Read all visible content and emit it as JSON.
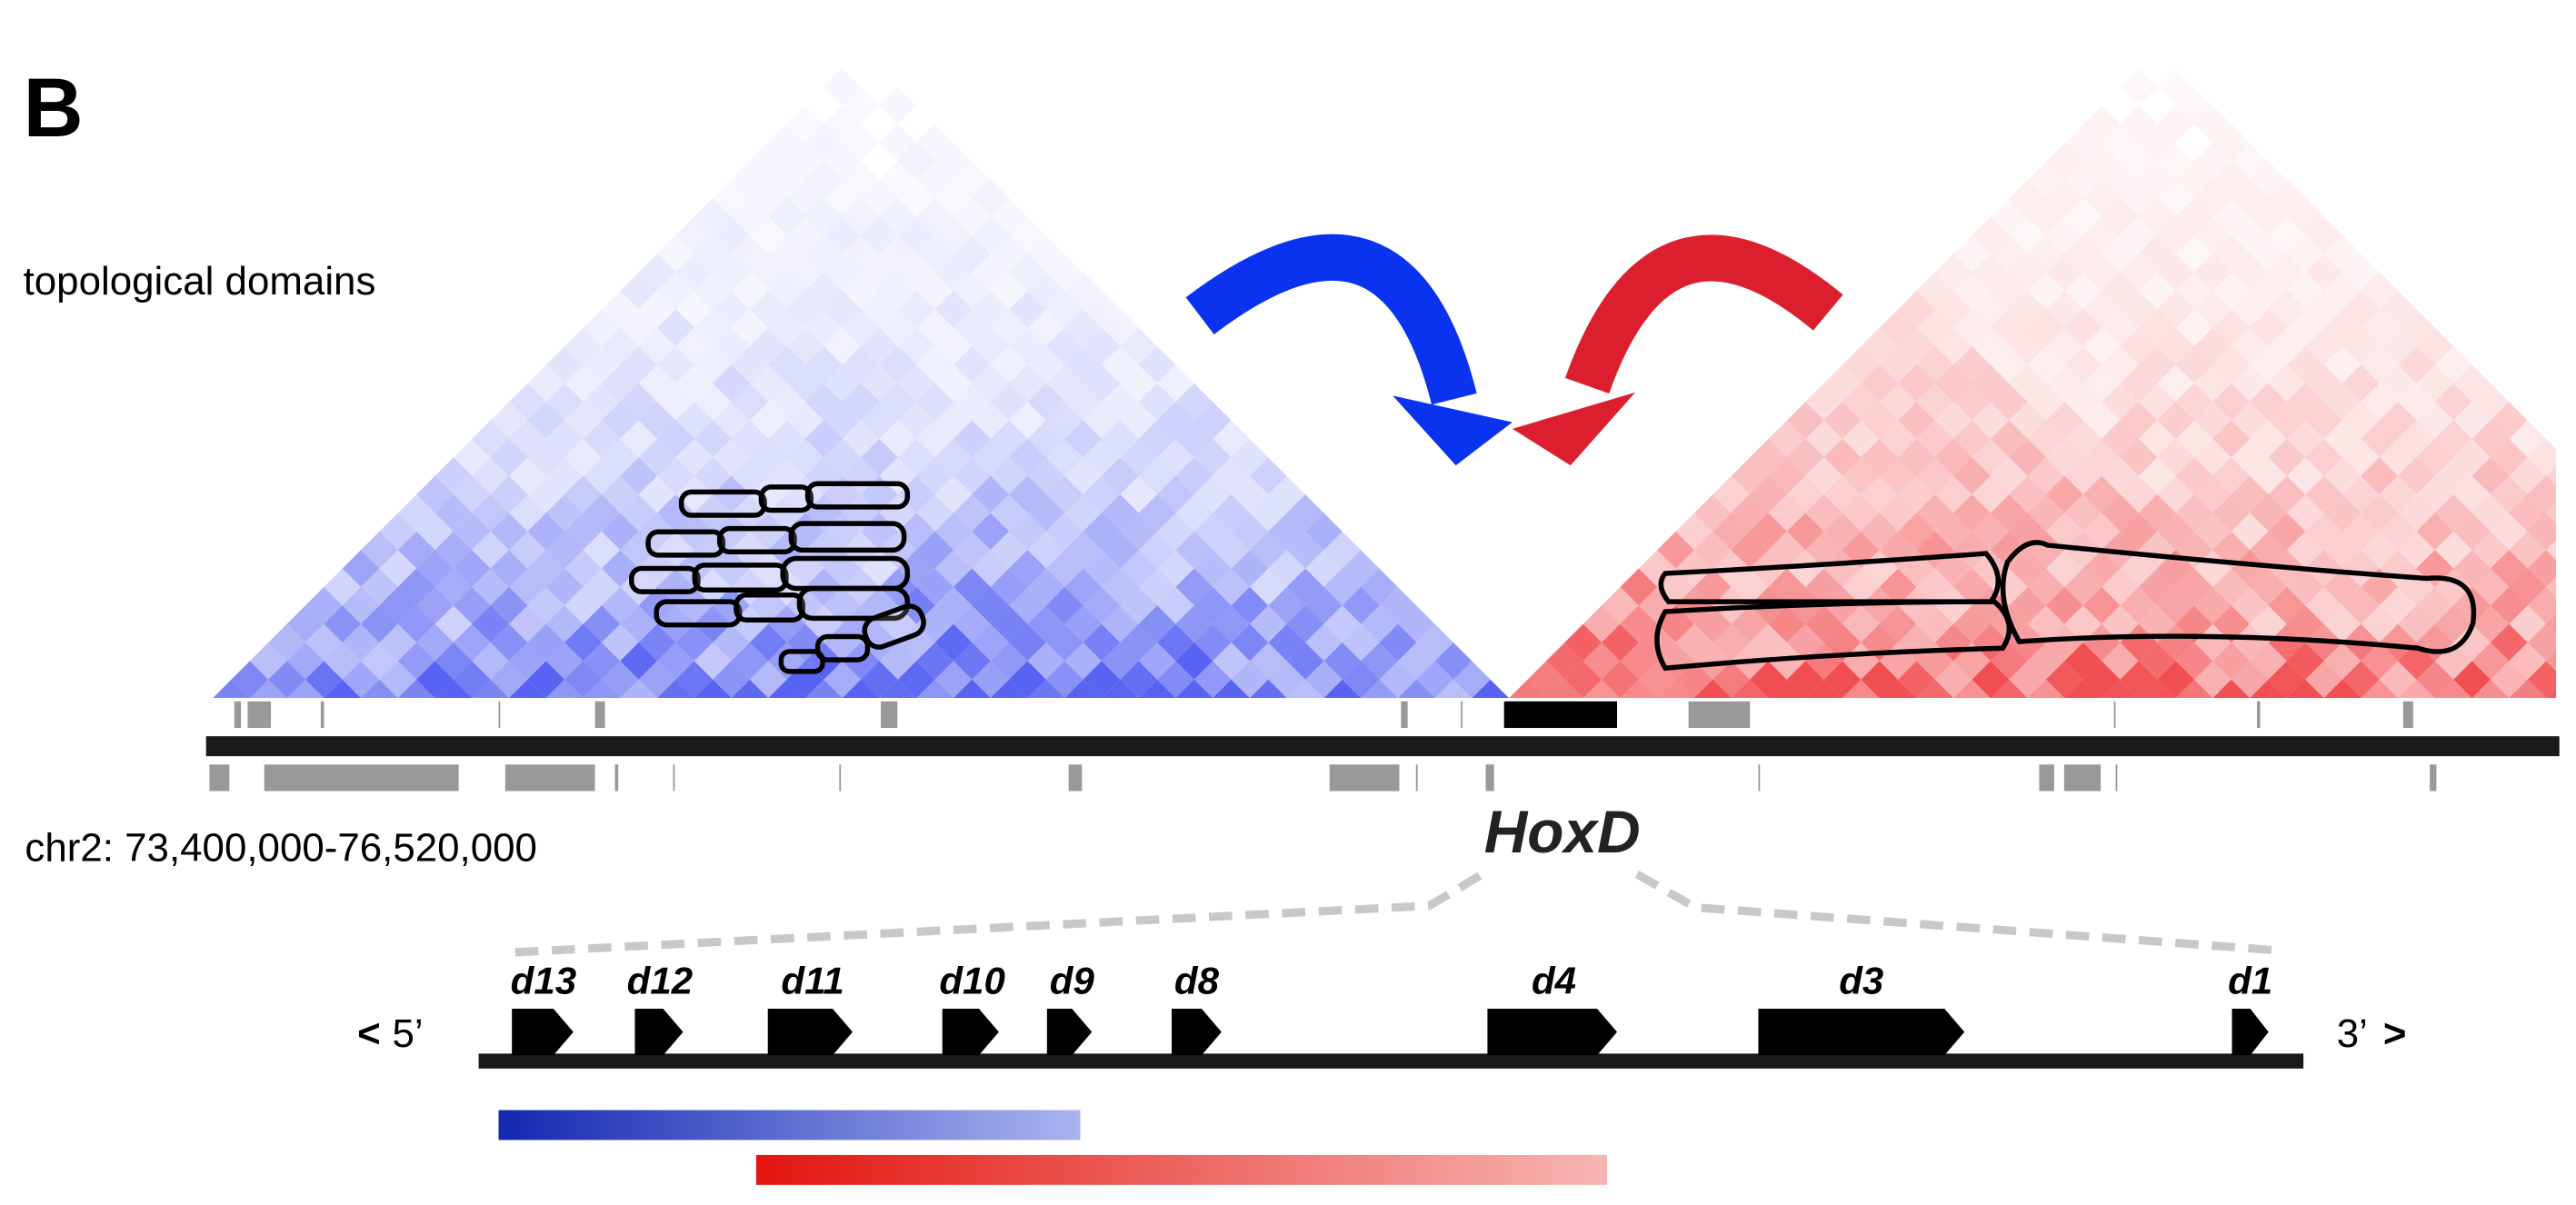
{
  "panel_label": "B",
  "tracks": {
    "domains_label": "topological domains",
    "coordinates": "chr2: 73,400,000-76,520,000"
  },
  "locus": {
    "name": "HoxD",
    "left_arrow": "<",
    "five_prime": "5’",
    "three_prime": "3’",
    "right_arrow": ">",
    "genes": [
      "d13",
      "d12",
      "d11",
      "d10",
      "d9",
      "d8",
      "d4",
      "d3",
      "d1"
    ]
  }
}
